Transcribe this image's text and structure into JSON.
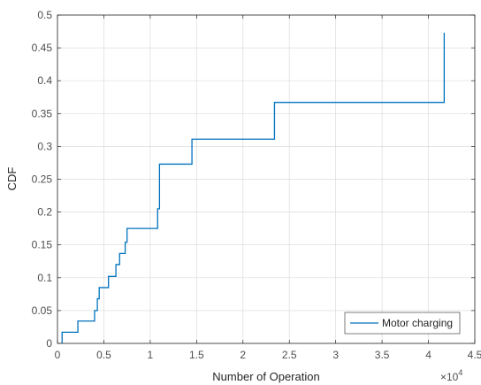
{
  "chart_data": {
    "type": "line",
    "title": "",
    "xlabel": "Number of Operation",
    "ylabel": "CDF",
    "x_exponent_label": "×10",
    "x_exponent_power": "4",
    "xlim": [
      0,
      4.5
    ],
    "ylim": [
      0,
      0.5
    ],
    "x_ticks": [
      "0",
      "0.5",
      "1",
      "1.5",
      "2",
      "2.5",
      "3",
      "3.5",
      "4",
      "4.5"
    ],
    "y_ticks": [
      "0",
      "0.05",
      "0.1",
      "0.15",
      "0.2",
      "0.25",
      "0.3",
      "0.35",
      "0.4",
      "0.45",
      "0.5"
    ],
    "grid": true,
    "legend_position": "bottom-right",
    "series": [
      {
        "name": "Motor charging",
        "color": "#0072bd",
        "step": true,
        "points": [
          [
            0.05,
            0.0
          ],
          [
            0.05,
            0.017
          ],
          [
            0.22,
            0.017
          ],
          [
            0.22,
            0.034
          ],
          [
            0.4,
            0.034
          ],
          [
            0.4,
            0.05
          ],
          [
            0.43,
            0.05
          ],
          [
            0.43,
            0.068
          ],
          [
            0.45,
            0.068
          ],
          [
            0.45,
            0.085
          ],
          [
            0.55,
            0.085
          ],
          [
            0.55,
            0.102
          ],
          [
            0.63,
            0.102
          ],
          [
            0.63,
            0.12
          ],
          [
            0.67,
            0.12
          ],
          [
            0.67,
            0.137
          ],
          [
            0.73,
            0.137
          ],
          [
            0.73,
            0.154
          ],
          [
            0.75,
            0.154
          ],
          [
            0.75,
            0.175
          ],
          [
            1.08,
            0.175
          ],
          [
            1.08,
            0.205
          ],
          [
            1.1,
            0.205
          ],
          [
            1.1,
            0.273
          ],
          [
            1.45,
            0.273
          ],
          [
            1.45,
            0.311
          ],
          [
            2.34,
            0.311
          ],
          [
            2.34,
            0.367
          ],
          [
            4.17,
            0.367
          ],
          [
            4.17,
            0.473
          ]
        ]
      }
    ]
  }
}
